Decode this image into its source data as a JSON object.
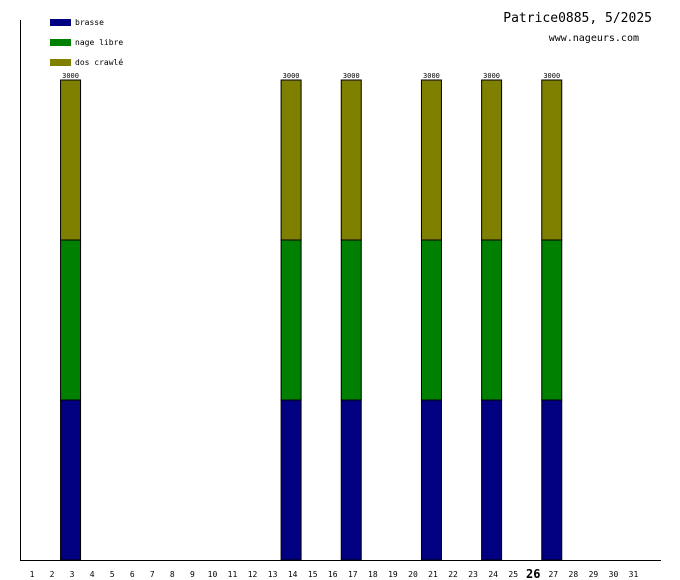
{
  "title": "Patrice0885, 5/2025",
  "site": "www.nageurs.com",
  "chart_data": {
    "type": "bar",
    "stacked": true,
    "categories": [
      "1",
      "2",
      "3",
      "4",
      "5",
      "6",
      "7",
      "8",
      "9",
      "10",
      "11",
      "12",
      "13",
      "14",
      "15",
      "16",
      "17",
      "18",
      "19",
      "20",
      "21",
      "22",
      "23",
      "24",
      "25",
      "26",
      "27",
      "28",
      "29",
      "30",
      "31"
    ],
    "highlighted_category": "26",
    "series": [
      {
        "name": "brasse",
        "color": "#000080",
        "values": [
          0,
          1000,
          0,
          0,
          0,
          0,
          0,
          0,
          0,
          0,
          0,
          0,
          1000,
          0,
          0,
          1000,
          0,
          0,
          0,
          1000,
          0,
          0,
          1000,
          0,
          0,
          1000,
          0,
          0,
          0,
          0,
          0
        ]
      },
      {
        "name": "nage libre",
        "color": "#008000",
        "values": [
          0,
          1000,
          0,
          0,
          0,
          0,
          0,
          0,
          0,
          0,
          0,
          0,
          1000,
          0,
          0,
          1000,
          0,
          0,
          0,
          1000,
          0,
          0,
          1000,
          0,
          0,
          1000,
          0,
          0,
          0,
          0,
          0
        ]
      },
      {
        "name": "dos crawlé",
        "color": "#808000",
        "values": [
          0,
          1000,
          0,
          0,
          0,
          0,
          0,
          0,
          0,
          0,
          0,
          0,
          1000,
          0,
          0,
          1000,
          0,
          0,
          0,
          1000,
          0,
          0,
          1000,
          0,
          0,
          1000,
          0,
          0,
          0,
          0,
          0
        ]
      }
    ],
    "totals_labels": [
      "",
      "3000",
      "",
      "",
      "",
      "",
      "",
      "",
      "",
      "",
      "",
      "",
      "3000",
      "",
      "",
      "3000",
      "",
      "",
      "",
      "3000",
      "",
      "",
      "3000",
      "",
      "",
      "3000",
      "",
      "",
      "",
      "",
      ""
    ],
    "ylim": [
      0,
      3000
    ],
    "xlabel": "",
    "ylabel": "",
    "legend_position": "top-left",
    "grid": false
  }
}
